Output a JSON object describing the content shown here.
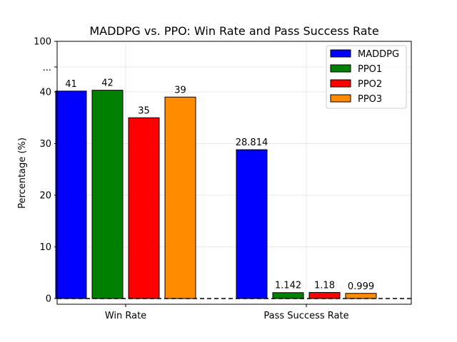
{
  "chart_data": {
    "type": "bar",
    "title": "MADDPG vs. PPO: Win Rate and Pass Success Rate",
    "ylabel": "Percentage (%)",
    "xlabel": "",
    "categories": [
      "Win Rate",
      "Pass Success Rate"
    ],
    "ylim": [
      0,
      100
    ],
    "yticks": [
      {
        "value": 0,
        "label": "0"
      },
      {
        "value": 10,
        "label": "10"
      },
      {
        "value": 20,
        "label": "20"
      },
      {
        "value": 30,
        "label": "30"
      },
      {
        "value": 40,
        "label": "40"
      },
      {
        "value": 100,
        "label": "100"
      }
    ],
    "axis_break_label": "...",
    "series": [
      {
        "name": "MADDPG",
        "color": "#0000ff",
        "values": [
          41,
          28.814
        ],
        "labels": [
          "41",
          "28.814"
        ]
      },
      {
        "name": "PPO1",
        "color": "#008000",
        "values": [
          42,
          1.142
        ],
        "labels": [
          "42",
          "1.142"
        ]
      },
      {
        "name": "PPO2",
        "color": "#ff0000",
        "values": [
          35,
          1.18
        ],
        "labels": [
          "35",
          "1.18"
        ]
      },
      {
        "name": "PPO3",
        "color": "#ff8c00",
        "values": [
          39,
          0.999
        ],
        "labels": [
          "39",
          "0.999"
        ]
      }
    ],
    "reference_line": {
      "value": 0,
      "style": "dashed"
    },
    "grid": true,
    "legend_position": "top-right"
  }
}
